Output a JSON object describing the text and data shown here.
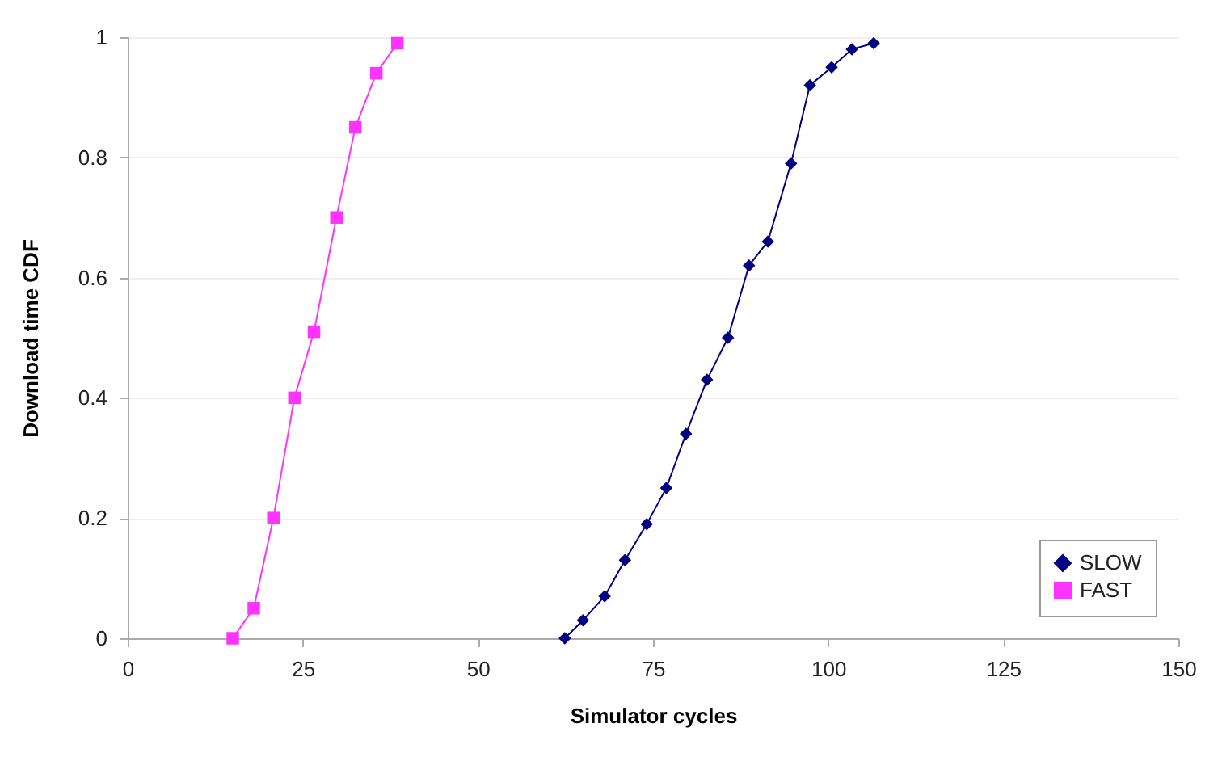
{
  "chart_data": {
    "type": "line",
    "xlabel": "Simulator cycles",
    "ylabel": "Download time CDF",
    "xlim": [
      0,
      150
    ],
    "xticks": [
      0,
      25,
      50,
      75,
      100,
      125,
      150
    ],
    "ylim": [
      0,
      1
    ],
    "yticks": [
      0,
      0.2,
      0.4,
      0.6,
      0.8,
      1
    ],
    "grid": "y",
    "legend": "bottom right",
    "series": [
      {
        "name": "SLOW",
        "color": "#000080",
        "marker": "diamond",
        "x": [
          62.4,
          65,
          68.1,
          71,
          74.1,
          76.9,
          79.7,
          82.7,
          85.7,
          88.7,
          91.4,
          94.7,
          97.4,
          100.5,
          103.4,
          106.5
        ],
        "values": [
          0,
          0.03,
          0.07,
          0.13,
          0.19,
          0.25,
          0.34,
          0.43,
          0.5,
          0.62,
          0.66,
          0.79,
          0.92,
          0.95,
          0.98,
          0.99
        ]
      },
      {
        "name": "FAST",
        "color": "#ff33ff",
        "marker": "square",
        "x": [
          15,
          18,
          20.8,
          23.8,
          26.6,
          29.8,
          32.5,
          35.5,
          38.5
        ],
        "values": [
          0,
          0.05,
          0.2,
          0.4,
          0.51,
          0.7,
          0.85,
          0.94,
          0.99
        ]
      }
    ]
  }
}
